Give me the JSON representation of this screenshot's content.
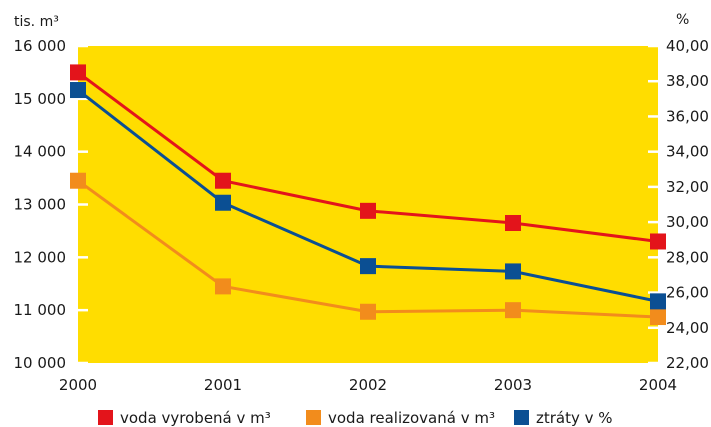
{
  "chart_data": {
    "type": "line",
    "x": [
      "2000",
      "2001",
      "2002",
      "2003",
      "2004"
    ],
    "left_axis": {
      "unit": "tis. m³",
      "ylim": [
        10000,
        16000
      ],
      "ticks": [
        "10 000",
        "11 000",
        "12 000",
        "13 000",
        "14 000",
        "15 000",
        "16 000"
      ]
    },
    "right_axis": {
      "unit": "%",
      "ylim": [
        22,
        40
      ],
      "ticks": [
        "22,00",
        "24,00",
        "26,00",
        "28,00",
        "30,00",
        "32,00",
        "34,00",
        "36,00",
        "38,00",
        "40,00"
      ]
    },
    "series": [
      {
        "name": "voda vyrobená v m³",
        "axis": "left",
        "color": "#e3141b",
        "values": [
          15500,
          13450,
          12880,
          12650,
          12300
        ]
      },
      {
        "name": "voda realizovaná v m³",
        "axis": "left",
        "color": "#f28c1c",
        "values": [
          13450,
          11450,
          10970,
          11000,
          10870
        ]
      },
      {
        "name": "ztráty v %",
        "axis": "right",
        "color": "#0b4f93",
        "values": [
          37.5,
          31.1,
          27.5,
          27.2,
          25.5
        ]
      }
    ],
    "plot_background": "#ffdd00",
    "grid": false,
    "legend_position": "bottom"
  }
}
